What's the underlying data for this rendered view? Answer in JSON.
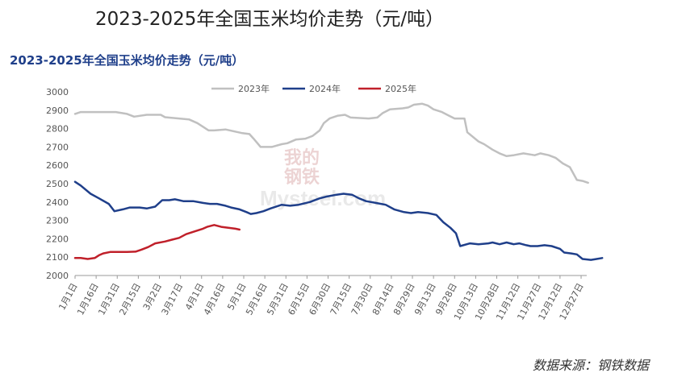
{
  "page_title": "2023-2025年全国玉米均价走势（元/吨）",
  "source": "数据来源：钢铁数据",
  "watermark": "我的钢铁 Mysteel.com",
  "chart_data": {
    "type": "line",
    "title": "2023-2025年全国玉米均价走势（元/吨）",
    "xlabel": "",
    "ylabel": "",
    "ylim": [
      2000,
      3000
    ],
    "yticks": [
      2000,
      2100,
      2200,
      2300,
      2400,
      2500,
      2600,
      2700,
      2800,
      2900,
      3000
    ],
    "grid": false,
    "legend": "top",
    "x_range": [
      1,
      365
    ],
    "x_ticks": [
      {
        "day": 1,
        "label": "1月1日"
      },
      {
        "day": 16,
        "label": "1月16日"
      },
      {
        "day": 31,
        "label": "1月31日"
      },
      {
        "day": 46,
        "label": "2月15日"
      },
      {
        "day": 61,
        "label": "3月2日"
      },
      {
        "day": 76,
        "label": "3月17日"
      },
      {
        "day": 91,
        "label": "4月1日"
      },
      {
        "day": 106,
        "label": "4月16日"
      },
      {
        "day": 121,
        "label": "5月1日"
      },
      {
        "day": 136,
        "label": "5月16日"
      },
      {
        "day": 151,
        "label": "5月31日"
      },
      {
        "day": 166,
        "label": "6月15日"
      },
      {
        "day": 181,
        "label": "6月30日"
      },
      {
        "day": 196,
        "label": "7月15日"
      },
      {
        "day": 211,
        "label": "7月30日"
      },
      {
        "day": 226,
        "label": "8月14日"
      },
      {
        "day": 241,
        "label": "8月29日"
      },
      {
        "day": 256,
        "label": "9月13日"
      },
      {
        "day": 271,
        "label": "9月28日"
      },
      {
        "day": 286,
        "label": "10月13日"
      },
      {
        "day": 301,
        "label": "10月28日"
      },
      {
        "day": 316,
        "label": "11月12日"
      },
      {
        "day": 331,
        "label": "11月27日"
      },
      {
        "day": 346,
        "label": "12月12日"
      },
      {
        "day": 361,
        "label": "12月27日"
      }
    ],
    "series": [
      {
        "name": "2023年",
        "color": "#c0c0c0",
        "points": [
          [
            1,
            2880
          ],
          [
            5,
            2890
          ],
          [
            30,
            2890
          ],
          [
            38,
            2880
          ],
          [
            43,
            2865
          ],
          [
            52,
            2875
          ],
          [
            62,
            2875
          ],
          [
            65,
            2862
          ],
          [
            75,
            2855
          ],
          [
            82,
            2850
          ],
          [
            88,
            2830
          ],
          [
            96,
            2790
          ],
          [
            100,
            2790
          ],
          [
            108,
            2795
          ],
          [
            120,
            2775
          ],
          [
            125,
            2770
          ],
          [
            128,
            2745
          ],
          [
            133,
            2700
          ],
          [
            141,
            2700
          ],
          [
            148,
            2715
          ],
          [
            152,
            2720
          ],
          [
            158,
            2740
          ],
          [
            165,
            2745
          ],
          [
            170,
            2760
          ],
          [
            175,
            2790
          ],
          [
            178,
            2830
          ],
          [
            182,
            2855
          ],
          [
            188,
            2870
          ],
          [
            193,
            2875
          ],
          [
            197,
            2860
          ],
          [
            210,
            2855
          ],
          [
            216,
            2860
          ],
          [
            220,
            2885
          ],
          [
            225,
            2905
          ],
          [
            234,
            2910
          ],
          [
            238,
            2915
          ],
          [
            242,
            2930
          ],
          [
            248,
            2935
          ],
          [
            252,
            2925
          ],
          [
            256,
            2905
          ],
          [
            262,
            2890
          ],
          [
            267,
            2870
          ],
          [
            271,
            2855
          ],
          [
            278,
            2855
          ],
          [
            280,
            2780
          ],
          [
            288,
            2730
          ],
          [
            292,
            2715
          ],
          [
            298,
            2685
          ],
          [
            303,
            2665
          ],
          [
            308,
            2650
          ],
          [
            313,
            2655
          ],
          [
            320,
            2665
          ],
          [
            328,
            2655
          ],
          [
            332,
            2665
          ],
          [
            338,
            2655
          ],
          [
            343,
            2640
          ],
          [
            348,
            2610
          ],
          [
            353,
            2590
          ],
          [
            358,
            2520
          ],
          [
            362,
            2515
          ],
          [
            366,
            2505
          ]
        ]
      },
      {
        "name": "2024年",
        "color": "#1f3f8a",
        "points": [
          [
            1,
            2510
          ],
          [
            5,
            2490
          ],
          [
            12,
            2445
          ],
          [
            18,
            2420
          ],
          [
            25,
            2390
          ],
          [
            29,
            2350
          ],
          [
            35,
            2360
          ],
          [
            40,
            2370
          ],
          [
            47,
            2370
          ],
          [
            52,
            2365
          ],
          [
            58,
            2375
          ],
          [
            63,
            2410
          ],
          [
            68,
            2410
          ],
          [
            72,
            2415
          ],
          [
            78,
            2405
          ],
          [
            85,
            2405
          ],
          [
            92,
            2395
          ],
          [
            97,
            2390
          ],
          [
            102,
            2390
          ],
          [
            108,
            2380
          ],
          [
            112,
            2370
          ],
          [
            118,
            2360
          ],
          [
            123,
            2345
          ],
          [
            126,
            2335
          ],
          [
            130,
            2340
          ],
          [
            135,
            2350
          ],
          [
            140,
            2365
          ],
          [
            148,
            2385
          ],
          [
            154,
            2380
          ],
          [
            160,
            2385
          ],
          [
            168,
            2400
          ],
          [
            175,
            2420
          ],
          [
            180,
            2430
          ],
          [
            187,
            2440
          ],
          [
            192,
            2445
          ],
          [
            198,
            2440
          ],
          [
            203,
            2420
          ],
          [
            208,
            2405
          ],
          [
            215,
            2395
          ],
          [
            222,
            2385
          ],
          [
            228,
            2360
          ],
          [
            235,
            2345
          ],
          [
            240,
            2340
          ],
          [
            245,
            2345
          ],
          [
            252,
            2340
          ],
          [
            258,
            2330
          ],
          [
            263,
            2290
          ],
          [
            268,
            2260
          ],
          [
            272,
            2230
          ],
          [
            275,
            2160
          ],
          [
            282,
            2175
          ],
          [
            288,
            2170
          ],
          [
            295,
            2175
          ],
          [
            298,
            2180
          ],
          [
            303,
            2170
          ],
          [
            308,
            2180
          ],
          [
            313,
            2170
          ],
          [
            317,
            2175
          ],
          [
            322,
            2165
          ],
          [
            325,
            2160
          ],
          [
            330,
            2160
          ],
          [
            335,
            2165
          ],
          [
            340,
            2160
          ],
          [
            346,
            2145
          ],
          [
            349,
            2125
          ],
          [
            354,
            2120
          ],
          [
            358,
            2115
          ],
          [
            362,
            2090
          ],
          [
            368,
            2085
          ],
          [
            372,
            2090
          ],
          [
            376,
            2095
          ]
        ]
      },
      {
        "name": "2025年",
        "color": "#c0202a",
        "points": [
          [
            1,
            2095
          ],
          [
            5,
            2095
          ],
          [
            10,
            2090
          ],
          [
            15,
            2095
          ],
          [
            18,
            2110
          ],
          [
            21,
            2120
          ],
          [
            26,
            2128
          ],
          [
            38,
            2128
          ],
          [
            44,
            2130
          ],
          [
            48,
            2140
          ],
          [
            53,
            2155
          ],
          [
            58,
            2175
          ],
          [
            65,
            2185
          ],
          [
            70,
            2195
          ],
          [
            75,
            2205
          ],
          [
            80,
            2225
          ],
          [
            86,
            2240
          ],
          [
            92,
            2255
          ],
          [
            95,
            2265
          ],
          [
            100,
            2275
          ],
          [
            105,
            2265
          ],
          [
            110,
            2260
          ],
          [
            115,
            2255
          ],
          [
            118,
            2250
          ]
        ]
      }
    ]
  }
}
